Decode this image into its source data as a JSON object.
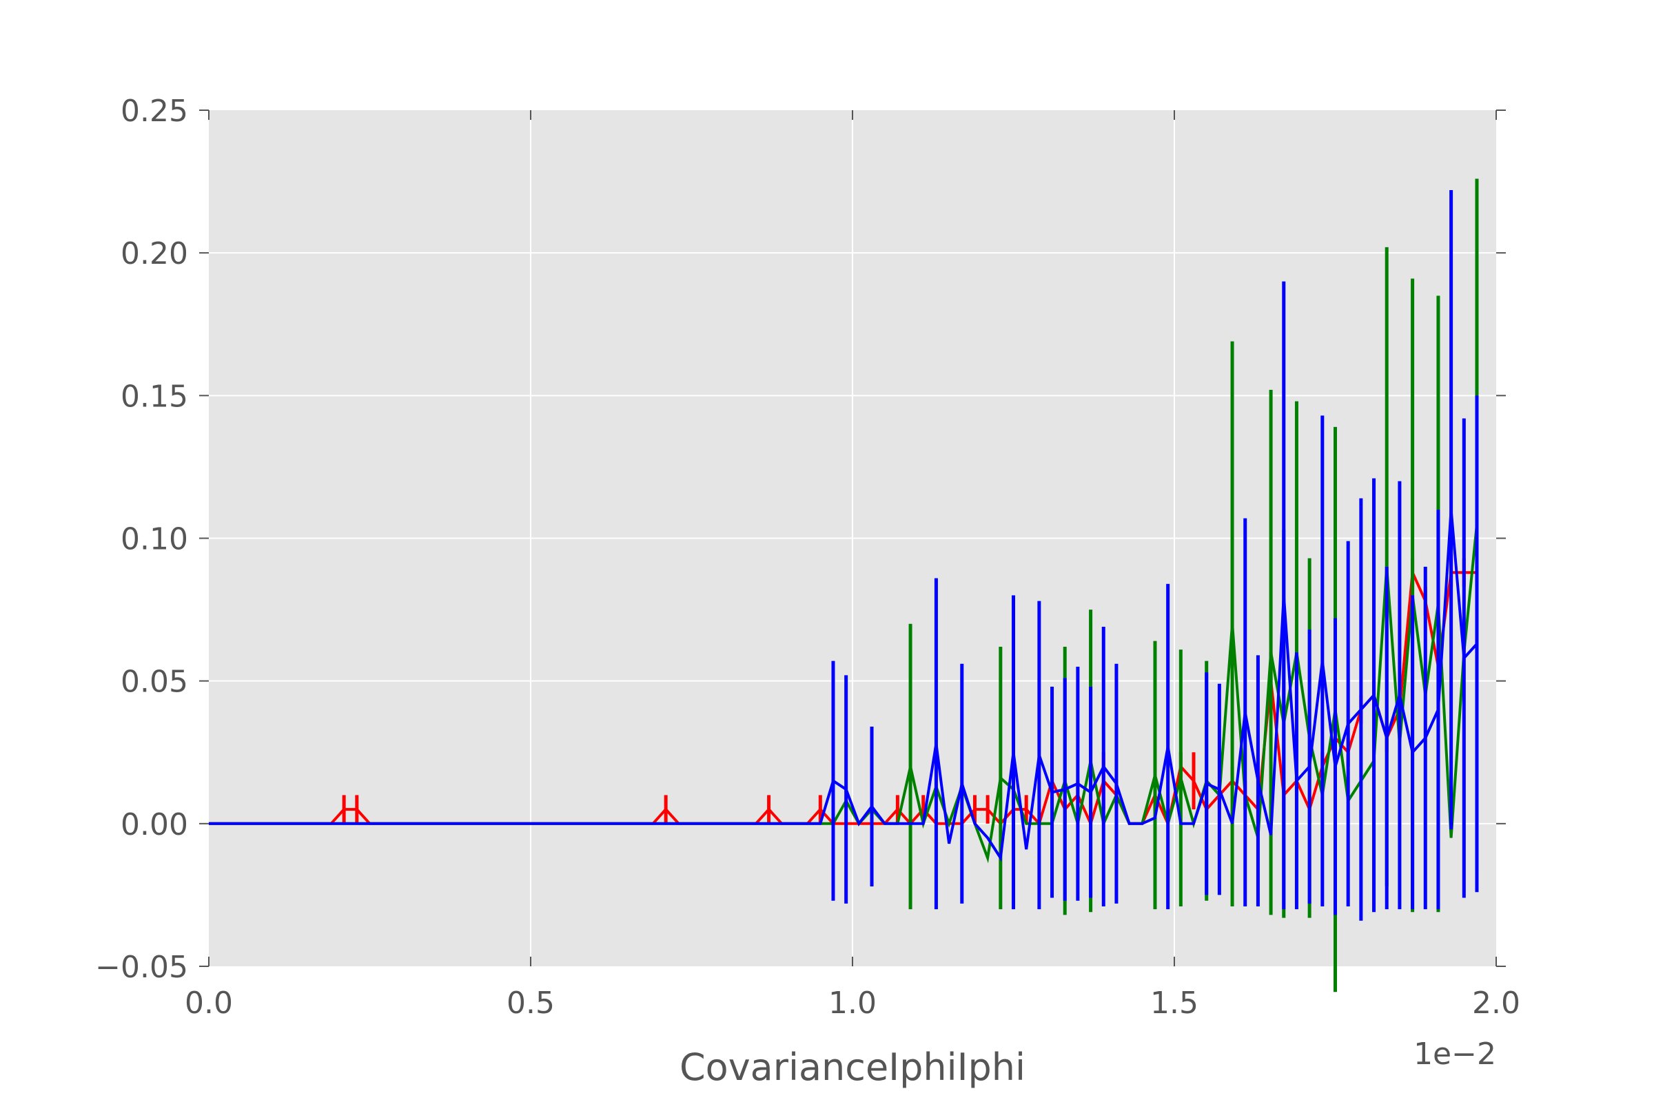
{
  "chart_data": {
    "type": "line",
    "title": "",
    "xlabel": "CovarianceIphiIphi",
    "ylabel": "",
    "x_offset_label": "1e−2",
    "x_scale": 0.01,
    "xlim": [
      0.0,
      2.0
    ],
    "ylim": [
      -0.05,
      0.25
    ],
    "xticks": [
      "0.0",
      "0.5",
      "1.0",
      "1.5",
      "2.0"
    ],
    "yticks": [
      "−0.05",
      "0.00",
      "0.05",
      "0.10",
      "0.15",
      "0.20",
      "0.25"
    ],
    "grid": true,
    "legend": "none",
    "background": "#e5e5e5",
    "series": [
      {
        "color": "#ff0000",
        "x": [
          0.0,
          0.19,
          0.21,
          0.23,
          0.25,
          0.69,
          0.71,
          0.73,
          0.85,
          0.87,
          0.89,
          0.93,
          0.95,
          0.97,
          0.99,
          1.01,
          1.03,
          1.05,
          1.07,
          1.09,
          1.11,
          1.13,
          1.15,
          1.17,
          1.19,
          1.21,
          1.23,
          1.25,
          1.27,
          1.29,
          1.31,
          1.33,
          1.35,
          1.37,
          1.39,
          1.41,
          1.43,
          1.45,
          1.47,
          1.49,
          1.51,
          1.53,
          1.55,
          1.57,
          1.59,
          1.61,
          1.63,
          1.65,
          1.67,
          1.69,
          1.71,
          1.73,
          1.75,
          1.77,
          1.79,
          1.81,
          1.83,
          1.85,
          1.87,
          1.89,
          1.91,
          1.93,
          1.95,
          1.97
        ],
        "y": [
          0,
          0,
          0.005,
          0.005,
          0,
          0,
          0.005,
          0,
          0,
          0.005,
          0,
          0,
          0.005,
          0,
          0,
          0,
          0,
          0,
          0.005,
          0,
          0.005,
          0,
          0,
          0,
          0.005,
          0.005,
          0,
          0.005,
          0.005,
          0,
          0.015,
          0.005,
          0.01,
          0,
          0.015,
          0.01,
          0,
          0,
          0.01,
          0,
          0.02,
          0.015,
          0.005,
          0.01,
          0.015,
          0.01,
          0.005,
          0.05,
          0.01,
          0.015,
          0.005,
          0.02,
          0.03,
          0.025,
          0.04,
          0.045,
          0.03,
          0.04,
          0.088,
          0.078,
          0.055,
          0.088,
          0.088,
          0.088
        ],
        "err": [
          0,
          0,
          0.005,
          0.005,
          0,
          0,
          0.005,
          0,
          0,
          0.005,
          0,
          0,
          0.005,
          0,
          0,
          0,
          0,
          0,
          0.005,
          0,
          0.005,
          0,
          0,
          0,
          0.005,
          0.005,
          0,
          0.005,
          0.005,
          0,
          0.01,
          0.005,
          0.005,
          0,
          0.01,
          0.005,
          0,
          0,
          0.005,
          0,
          0.005,
          0.01,
          0.005,
          0.005,
          0.005,
          0.005,
          0.005,
          0.01,
          0.005,
          0.005,
          0.005,
          0.005,
          0.005,
          0.005,
          0.005,
          0.005,
          0.005,
          0.005,
          0.005,
          0.005,
          0.005,
          0.005,
          0.005,
          0.005
        ]
      },
      {
        "color": "#008000",
        "x": [
          0.0,
          0.95,
          0.97,
          0.99,
          1.01,
          1.03,
          1.05,
          1.07,
          1.09,
          1.11,
          1.13,
          1.15,
          1.17,
          1.19,
          1.21,
          1.23,
          1.25,
          1.27,
          1.29,
          1.31,
          1.33,
          1.35,
          1.37,
          1.39,
          1.41,
          1.43,
          1.45,
          1.47,
          1.49,
          1.51,
          1.53,
          1.55,
          1.57,
          1.59,
          1.61,
          1.63,
          1.65,
          1.67,
          1.69,
          1.71,
          1.73,
          1.75,
          1.77,
          1.79,
          1.81,
          1.83,
          1.85,
          1.87,
          1.89,
          1.91,
          1.93,
          1.95,
          1.97
        ],
        "y": [
          0,
          0,
          0,
          0.008,
          0,
          0.005,
          0,
          0,
          0.02,
          0,
          0.013,
          0,
          0.013,
          0,
          -0.012,
          0.016,
          0.012,
          0,
          0,
          0,
          0.015,
          0,
          0.022,
          0,
          0.01,
          0,
          0,
          0.017,
          0,
          0.016,
          0,
          0.015,
          0.01,
          0.07,
          0.01,
          -0.005,
          0.06,
          0.035,
          0.06,
          0.03,
          0.01,
          0.04,
          0.008,
          0.015,
          0.022,
          0.09,
          0.028,
          0.08,
          0.045,
          0.077,
          -0.005,
          0.06,
          0.105
        ],
        "err": [
          0,
          0,
          0,
          0,
          0,
          0,
          0,
          0,
          0.05,
          0,
          0,
          0,
          0,
          0,
          0,
          0.046,
          0,
          0,
          0,
          0,
          0.047,
          0,
          0.053,
          0,
          0,
          0,
          0,
          0.047,
          0,
          0.045,
          0,
          0.042,
          0,
          0.099,
          0,
          0,
          0.092,
          0.068,
          0.088,
          0.063,
          0,
          0.099,
          0,
          0,
          0,
          0.112,
          0,
          0.111,
          0,
          0.108,
          0,
          0,
          0.121
        ]
      },
      {
        "color": "#0000ff",
        "x": [
          0.0,
          0.95,
          0.97,
          0.99,
          1.01,
          1.03,
          1.05,
          1.07,
          1.09,
          1.11,
          1.13,
          1.15,
          1.17,
          1.19,
          1.21,
          1.23,
          1.25,
          1.27,
          1.29,
          1.31,
          1.33,
          1.35,
          1.37,
          1.39,
          1.41,
          1.43,
          1.45,
          1.47,
          1.49,
          1.51,
          1.53,
          1.55,
          1.57,
          1.59,
          1.61,
          1.63,
          1.65,
          1.67,
          1.69,
          1.71,
          1.73,
          1.75,
          1.77,
          1.79,
          1.81,
          1.83,
          1.85,
          1.87,
          1.89,
          1.91,
          1.93,
          1.95,
          1.97
        ],
        "y": [
          0,
          0,
          0.015,
          0.012,
          0,
          0.006,
          0,
          0,
          0,
          0,
          0.028,
          -0.007,
          0.014,
          0,
          -0.005,
          -0.012,
          0.025,
          -0.009,
          0.024,
          0.011,
          0.012,
          0.014,
          0.011,
          0.02,
          0.014,
          0,
          0,
          0.002,
          0.027,
          0,
          0,
          0.014,
          0.012,
          0,
          0.039,
          0.015,
          -0.004,
          0.08,
          0.015,
          0.02,
          0.057,
          0.02,
          0.035,
          0.04,
          0.045,
          0.03,
          0.045,
          0.025,
          0.03,
          0.04,
          0.11,
          0.058,
          0.063
        ],
        "err": [
          0,
          0,
          0.042,
          0.04,
          0,
          0.028,
          0,
          0,
          0,
          0,
          0.058,
          0,
          0.042,
          0,
          0,
          0,
          0.055,
          0,
          0.054,
          0.037,
          0.039,
          0.041,
          0.037,
          0.049,
          0.042,
          0,
          0,
          0,
          0.057,
          0,
          0,
          0.039,
          0.037,
          0,
          0.068,
          0.044,
          0,
          0.11,
          0.045,
          0.048,
          0.086,
          0.052,
          0.064,
          0.074,
          0.076,
          0.06,
          0.075,
          0.055,
          0.06,
          0.07,
          0.112,
          0.084,
          0.087
        ]
      }
    ]
  }
}
